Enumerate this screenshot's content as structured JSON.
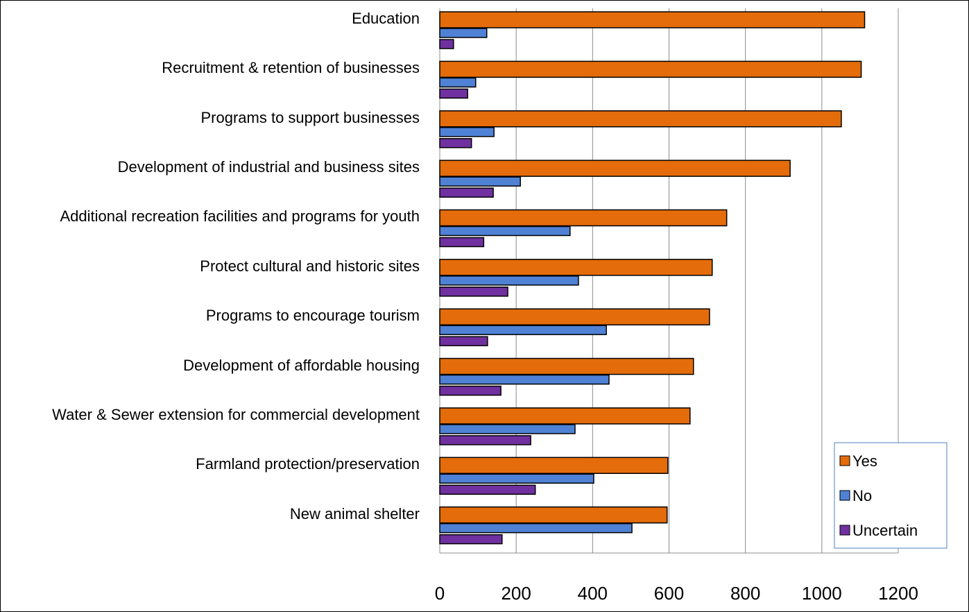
{
  "chart_data": {
    "type": "bar",
    "orientation": "horizontal",
    "categories": [
      "Education",
      "Recruitment & retention of businesses",
      "Programs to support businesses",
      "Development of industrial and business sites",
      "Additional recreation facilities and programs for youth",
      "Protect cultural and historic sites",
      "Programs to encourage tourism",
      "Development of affordable housing",
      "Water & Sewer extension for commercial development",
      "Farmland protection/preservation",
      "New animal shelter"
    ],
    "series": [
      {
        "name": "Yes",
        "color": "#e46c0a",
        "values": [
          1112,
          1103,
          1051,
          917,
          751,
          713,
          706,
          664,
          655,
          597,
          595
        ]
      },
      {
        "name": "No",
        "color": "#4f81d5",
        "values": [
          123,
          94,
          142,
          211,
          341,
          363,
          436,
          443,
          354,
          403,
          503
        ]
      },
      {
        "name": "Uncertain",
        "color": "#7030a0",
        "values": [
          36,
          73,
          83,
          140,
          115,
          178,
          125,
          160,
          238,
          250,
          163
        ]
      }
    ],
    "xlim": [
      0,
      1200
    ],
    "xticks": [
      0,
      200,
      400,
      600,
      800,
      1000,
      1200
    ],
    "grid": true,
    "legend": "lower right"
  }
}
